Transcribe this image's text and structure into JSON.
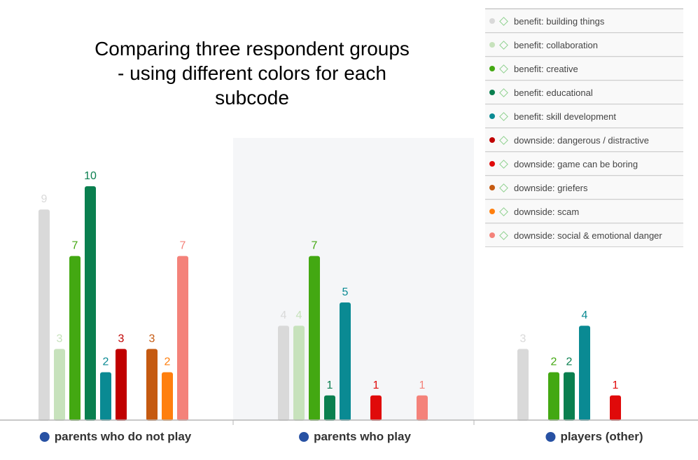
{
  "chart_data": {
    "type": "bar",
    "title": [
      "Comparing three respondent groups",
      "- using different colors for each",
      "subcode"
    ],
    "categories": [
      "parents who do not play",
      "parents who play",
      "players (other)"
    ],
    "category_dot_color": "#2751a3",
    "highlighted_group_background": "#f5f6f8",
    "ylim": [
      0,
      10
    ],
    "grid": false,
    "legend_position": "top-right",
    "series": [
      {
        "name": "benefit: building things",
        "color": "#d9d9d9",
        "values": [
          9,
          4,
          3
        ]
      },
      {
        "name": "benefit: collaboration",
        "color": "#c7e2bc",
        "values": [
          3,
          4,
          null
        ]
      },
      {
        "name": "benefit: creative",
        "color": "#43a812",
        "values": [
          7,
          7,
          2
        ]
      },
      {
        "name": "benefit: educational",
        "color": "#0a7f4f",
        "values": [
          10,
          1,
          2
        ]
      },
      {
        "name": "benefit: skill development",
        "color": "#0a8a93",
        "values": [
          2,
          5,
          4
        ]
      },
      {
        "name": "downside: dangerous / distractive",
        "color": "#c00000",
        "values": [
          3,
          null,
          null
        ]
      },
      {
        "name": "downside: game can be boring",
        "color": "#e00a0a",
        "values": [
          null,
          1,
          1
        ]
      },
      {
        "name": "downside: griefers",
        "color": "#c55a11",
        "values": [
          3,
          null,
          null
        ]
      },
      {
        "name": "downside: scam",
        "color": "#ff7f0e",
        "values": [
          2,
          null,
          null
        ]
      },
      {
        "name": "downside: social & emotional danger",
        "color": "#f4827a",
        "values": [
          7,
          1,
          null
        ]
      }
    ]
  }
}
